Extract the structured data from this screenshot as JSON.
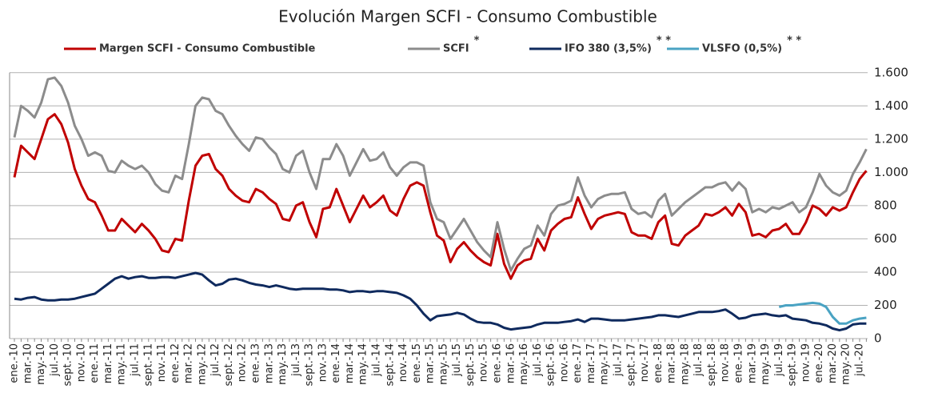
{
  "chart_data": {
    "type": "line",
    "title": "Evolución Margen  SCFI - Consumo Combustible",
    "categories": [
      "ene.-10",
      null,
      "mar.-10",
      null,
      "may.-10",
      null,
      "jul.-10",
      null,
      "sept.-10",
      null,
      "nov.-10",
      null,
      "ene.-11",
      null,
      "mar.-11",
      null,
      "may.-11",
      null,
      "jul.-11",
      null,
      "sept.-11",
      null,
      "nov.-11",
      null,
      "ene.-12",
      null,
      "mar.-12",
      null,
      "may.-12",
      null,
      "jul.-12",
      null,
      "sept.-12",
      null,
      "nov.-12",
      null,
      "ene.-13",
      null,
      "mar.-13",
      null,
      "may.-13",
      null,
      "jul.-13",
      null,
      "sept.-13",
      null,
      "nov.-13",
      null,
      "ene.-14",
      null,
      "mar.-14",
      null,
      "may.-14",
      null,
      "jul.-14",
      null,
      "sept.-14",
      null,
      "nov.-14",
      null,
      "ene.-15",
      null,
      "mar.-15",
      null,
      "may.-15",
      null,
      "jul.-15",
      null,
      "sept.-15",
      null,
      "nov.-15",
      null,
      "ene.-16",
      null,
      "mar.-16",
      null,
      "may.-16",
      null,
      "jul.-16",
      null,
      "sept.-16",
      null,
      "nov.-16",
      null,
      "ene.-17",
      null,
      "mar.-17",
      null,
      "may.-17",
      null,
      "jul.-17",
      null,
      "sept.-17",
      null,
      "nov.-17",
      null,
      "ene.-18",
      null,
      "mar.-18",
      null,
      "may.-18",
      null,
      "jul.-18",
      null,
      "sept.-18",
      null,
      "nov.-18",
      null,
      "ene.-19",
      null,
      "mar.-19",
      null,
      "may.-19",
      null,
      "jul.-19",
      null,
      "sept.-19",
      null,
      "nov.-19",
      null,
      "ene.-20",
      null,
      "mar.-20",
      null,
      "may.-20",
      null,
      "jul.-20",
      null
    ],
    "series": [
      {
        "name": "Margen SCFI - Consumo Combustible",
        "color": "#c00000",
        "values": [
          970,
          1160,
          1120,
          1080,
          1200,
          1320,
          1350,
          1290,
          1180,
          1020,
          920,
          840,
          820,
          740,
          650,
          650,
          720,
          680,
          640,
          690,
          650,
          600,
          530,
          520,
          600,
          590,
          830,
          1040,
          1100,
          1110,
          1020,
          980,
          900,
          860,
          830,
          820,
          900,
          880,
          840,
          810,
          720,
          710,
          800,
          820,
          700,
          610,
          780,
          790,
          900,
          800,
          700,
          780,
          860,
          790,
          820,
          860,
          770,
          740,
          840,
          920,
          940,
          920,
          760,
          620,
          590,
          460,
          540,
          580,
          530,
          490,
          460,
          440,
          630,
          450,
          360,
          440,
          470,
          480,
          600,
          530,
          650,
          690,
          720,
          730,
          850,
          750,
          660,
          720,
          740,
          750,
          760,
          750,
          640,
          620,
          620,
          600,
          700,
          740,
          570,
          560,
          620,
          650,
          680,
          750,
          740,
          760,
          790,
          740,
          810,
          760,
          620,
          630,
          610,
          650,
          660,
          690,
          630,
          630,
          700,
          800,
          780,
          740,
          790,
          770,
          790,
          880,
          960,
          1010
        ]
      },
      {
        "name": "SCFI",
        "note": "*",
        "color": "#8c8c8c",
        "values": [
          1210,
          1400,
          1370,
          1330,
          1420,
          1560,
          1570,
          1520,
          1420,
          1280,
          1200,
          1100,
          1120,
          1100,
          1010,
          1000,
          1070,
          1040,
          1020,
          1040,
          1000,
          930,
          890,
          880,
          980,
          960,
          1170,
          1400,
          1450,
          1440,
          1370,
          1350,
          1280,
          1220,
          1170,
          1130,
          1210,
          1200,
          1150,
          1110,
          1020,
          1000,
          1100,
          1130,
          1000,
          900,
          1080,
          1080,
          1170,
          1100,
          980,
          1060,
          1140,
          1070,
          1080,
          1120,
          1030,
          980,
          1030,
          1060,
          1060,
          1040,
          820,
          720,
          700,
          600,
          660,
          720,
          650,
          580,
          530,
          490,
          700,
          540,
          410,
          480,
          540,
          560,
          680,
          620,
          750,
          800,
          810,
          830,
          970,
          860,
          790,
          840,
          860,
          870,
          870,
          880,
          780,
          750,
          760,
          730,
          830,
          870,
          740,
          780,
          820,
          850,
          880,
          910,
          910,
          930,
          940,
          890,
          940,
          900,
          760,
          780,
          760,
          790,
          780,
          800,
          820,
          760,
          790,
          880,
          990,
          920,
          880,
          860,
          890,
          990,
          1060,
          1140
        ]
      },
      {
        "name": "IFO 380 (3,5%)",
        "note": "* *",
        "color": "#0f2a5e",
        "values": [
          240,
          235,
          245,
          250,
          235,
          230,
          230,
          235,
          235,
          240,
          250,
          260,
          270,
          300,
          330,
          360,
          375,
          360,
          370,
          375,
          365,
          365,
          370,
          370,
          365,
          375,
          385,
          395,
          385,
          350,
          320,
          330,
          355,
          360,
          350,
          335,
          325,
          320,
          310,
          320,
          310,
          300,
          295,
          300,
          300,
          300,
          300,
          295,
          295,
          290,
          280,
          285,
          285,
          280,
          285,
          285,
          280,
          275,
          260,
          240,
          200,
          150,
          110,
          135,
          140,
          145,
          155,
          145,
          120,
          100,
          95,
          95,
          85,
          65,
          55,
          60,
          65,
          70,
          85,
          95,
          95,
          95,
          100,
          105,
          115,
          100,
          120,
          120,
          115,
          110,
          110,
          110,
          115,
          120,
          125,
          130,
          140,
          140,
          135,
          130,
          140,
          150,
          160,
          160,
          160,
          165,
          175,
          150,
          120,
          125,
          140,
          145,
          150,
          140,
          135,
          140,
          120,
          115,
          110,
          95,
          90,
          80,
          60,
          50,
          60,
          85,
          90,
          90
        ]
      },
      {
        "name": "VLSFO (0,5%)",
        "note": "* *",
        "color": "#4aa3c3",
        "values": [
          null,
          null,
          null,
          null,
          null,
          null,
          null,
          null,
          null,
          null,
          null,
          null,
          null,
          null,
          null,
          null,
          null,
          null,
          null,
          null,
          null,
          null,
          null,
          null,
          null,
          null,
          null,
          null,
          null,
          null,
          null,
          null,
          null,
          null,
          null,
          null,
          null,
          null,
          null,
          null,
          null,
          null,
          null,
          null,
          null,
          null,
          null,
          null,
          null,
          null,
          null,
          null,
          null,
          null,
          null,
          null,
          null,
          null,
          null,
          null,
          null,
          null,
          null,
          null,
          null,
          null,
          null,
          null,
          null,
          null,
          null,
          null,
          null,
          null,
          null,
          null,
          null,
          null,
          null,
          null,
          null,
          null,
          null,
          null,
          null,
          null,
          null,
          null,
          null,
          null,
          null,
          null,
          null,
          null,
          null,
          null,
          null,
          null,
          null,
          null,
          null,
          null,
          null,
          null,
          null,
          null,
          null,
          null,
          null,
          null,
          null,
          null,
          null,
          null,
          190,
          200,
          200,
          205,
          210,
          215,
          210,
          190,
          130,
          90,
          90,
          110,
          120,
          125
        ]
      }
    ],
    "ylim": [
      0,
      1700
    ],
    "yticks": [
      0,
      200,
      400,
      600,
      800,
      {
        "value": 1000,
        "label": "1.000"
      },
      {
        "value": 1200,
        "label": "1.200"
      },
      {
        "value": 1400,
        "label": "1.400"
      },
      {
        "value": 1600,
        "label": "1.600"
      }
    ],
    "grid": true
  }
}
